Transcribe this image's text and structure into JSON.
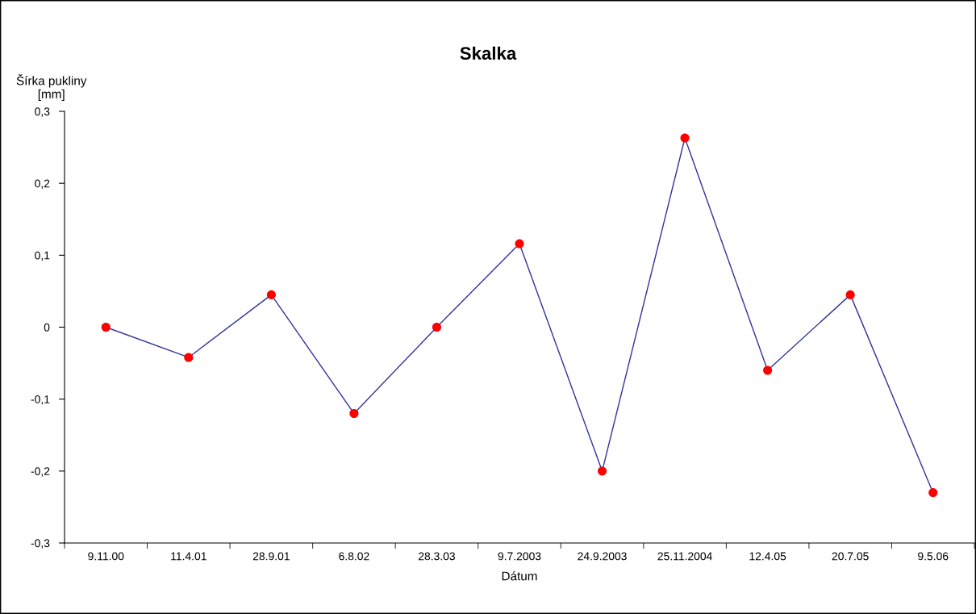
{
  "chart_data": {
    "type": "line",
    "title": "Skalka",
    "xlabel": "Dátum",
    "ylabel": "Šírka pukliny\n[mm]",
    "categories": [
      "9.11.00",
      "11.4.01",
      "28.9.01",
      "6.8.02",
      "28.3.03",
      "9.7.2003",
      "24.9.2003",
      "25.11.2004",
      "12.4.05",
      "20.7.05",
      "9.5.06"
    ],
    "series": [
      {
        "color": "#33339a",
        "colors": [
          "#ff0000",
          "#ff0000",
          "#ff0000",
          "#ff0000",
          "#ff0000",
          "#ff0000",
          "#ff0000",
          "#ff0000",
          "#ff0000",
          "#ff0000",
          "#ff0000"
        ],
        "values": [
          0.0,
          -0.042,
          0.045,
          -0.12,
          0.0,
          0.116,
          -0.2,
          0.263,
          -0.06,
          0.045,
          -0.23
        ]
      }
    ],
    "ylim": [
      -0.3,
      0.3
    ],
    "yticks": [
      {
        "value": -0.3,
        "label": "-0,3"
      },
      {
        "value": -0.2,
        "label": "-0,2"
      },
      {
        "value": -0.1,
        "label": "-0,1"
      },
      {
        "value": 0,
        "label": "0"
      },
      {
        "value": 0.1,
        "label": "0,1"
      },
      {
        "value": 0.2,
        "label": "0,2"
      },
      {
        "value": 0.3,
        "label": "0,3"
      }
    ],
    "marker": "circle",
    "line_style": "solid",
    "grid": false,
    "legend": false
  }
}
